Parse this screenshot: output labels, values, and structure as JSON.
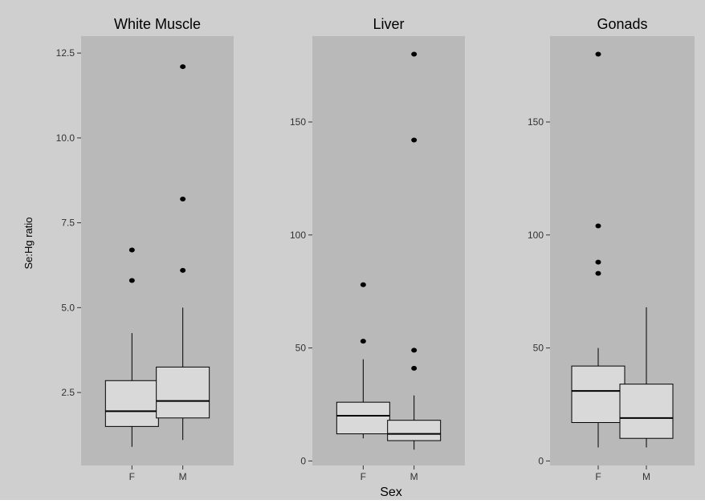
{
  "chart_data": {
    "type": "boxplot",
    "xlabel": "Sex",
    "ylabel": "Se:Hg ratio",
    "categories": [
      "F",
      "M"
    ],
    "colors": {
      "background": "#cfcfcf",
      "panel": "#b9b9b9",
      "box_fill": "#d9d9d9",
      "stroke": "#000000",
      "text": "#000000"
    },
    "panels": [
      {
        "title": "White Muscle",
        "ylim": [
          0.35,
          13.0
        ],
        "yticks": [
          2.5,
          5.0,
          7.5,
          10.0,
          12.5
        ],
        "ytick_labels": [
          "2.5",
          "5.0",
          "7.5",
          "10.0",
          "12.5"
        ],
        "groups": [
          {
            "category": "F",
            "min": 0.9,
            "q1": 1.5,
            "median": 1.95,
            "q3": 2.85,
            "max": 4.25,
            "outliers": [
              5.8,
              6.7
            ]
          },
          {
            "category": "M",
            "min": 1.1,
            "q1": 1.75,
            "median": 2.25,
            "q3": 3.25,
            "max": 5.0,
            "outliers": [
              6.1,
              8.2,
              12.1
            ]
          }
        ]
      },
      {
        "title": "Liver",
        "ylim": [
          -2,
          188
        ],
        "yticks": [
          0,
          50,
          100,
          150
        ],
        "ytick_labels": [
          "0",
          "50",
          "100",
          "150"
        ],
        "groups": [
          {
            "category": "F",
            "min": 10,
            "q1": 12,
            "median": 20,
            "q3": 26,
            "max": 45,
            "outliers": [
              53,
              78
            ]
          },
          {
            "category": "M",
            "min": 5,
            "q1": 9,
            "median": 12,
            "q3": 18,
            "max": 29,
            "outliers": [
              41,
              49,
              142,
              180
            ]
          }
        ]
      },
      {
        "title": "Gonads",
        "ylim": [
          -2,
          188
        ],
        "yticks": [
          0,
          50,
          100,
          150
        ],
        "ytick_labels": [
          "0",
          "50",
          "100",
          "150"
        ],
        "groups": [
          {
            "category": "F",
            "min": 6,
            "q1": 17,
            "median": 31,
            "q3": 42,
            "max": 50,
            "outliers": [
              83,
              88,
              104,
              180
            ]
          },
          {
            "category": "M",
            "min": 6,
            "q1": 10,
            "median": 19,
            "q3": 34,
            "max": 68,
            "outliers": []
          }
        ]
      }
    ]
  }
}
